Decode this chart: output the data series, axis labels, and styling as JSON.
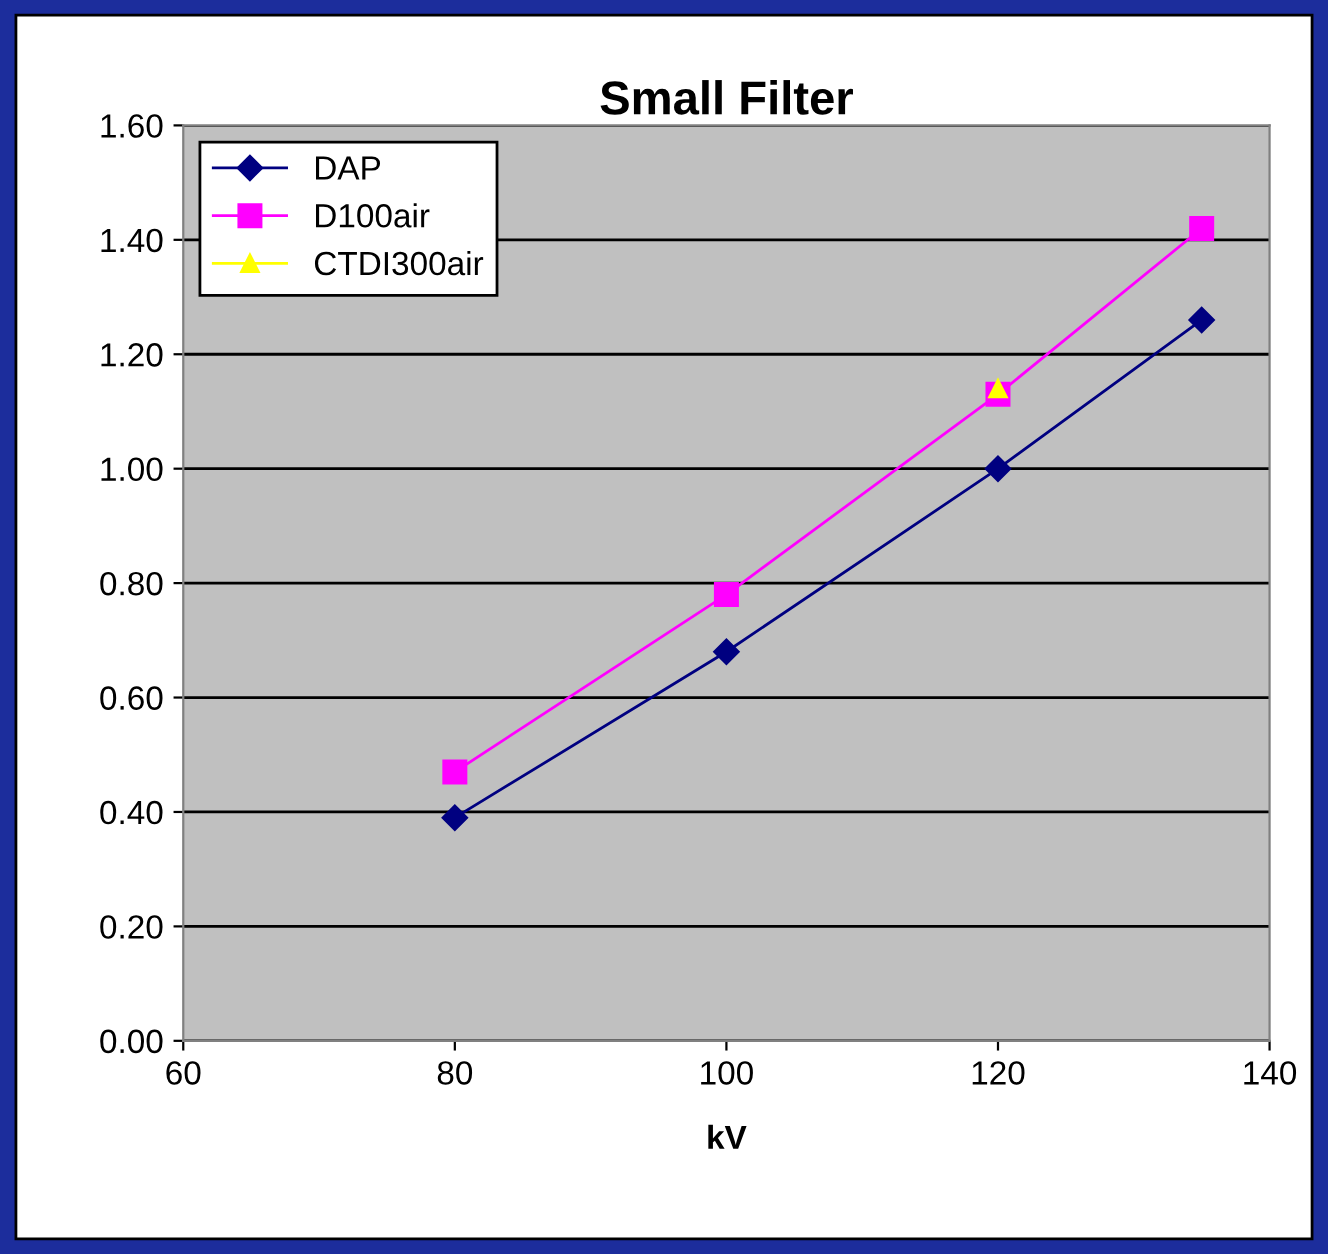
{
  "chart_data": {
    "type": "line",
    "title": "Small Filter",
    "xlabel": "kV",
    "x": [
      80,
      100,
      120,
      135
    ],
    "series": [
      {
        "name": "DAP",
        "color": "#000080",
        "marker": "diamond",
        "values": [
          0.39,
          0.68,
          1.0,
          1.26
        ]
      },
      {
        "name": "D100air",
        "color": "#ff00ff",
        "marker": "square",
        "values": [
          0.47,
          0.78,
          1.13,
          1.42
        ]
      },
      {
        "name": "CTDI300air",
        "color": "#ffff00",
        "marker": "triangle",
        "values": [
          null,
          null,
          1.14,
          null
        ]
      }
    ],
    "xlim": [
      60,
      140
    ],
    "xticks": [
      60,
      80,
      100,
      120,
      140
    ],
    "ylim": [
      0,
      1.6
    ],
    "yticks": [
      {
        "value": 0,
        "label": "0.00"
      },
      {
        "value": 0.2,
        "label": "0.20"
      },
      {
        "value": 0.4,
        "label": "0.40"
      },
      {
        "value": 0.6,
        "label": "0.60"
      },
      {
        "value": 0.8,
        "label": "0.80"
      },
      {
        "value": 1.0,
        "label": "1.00"
      },
      {
        "value": 1.2,
        "label": "1.20"
      },
      {
        "value": 1.4,
        "label": "1.40"
      },
      {
        "value": 1.6,
        "label": "1.60"
      }
    ],
    "grid": "y",
    "legend": "top left",
    "line_style": "solid"
  }
}
